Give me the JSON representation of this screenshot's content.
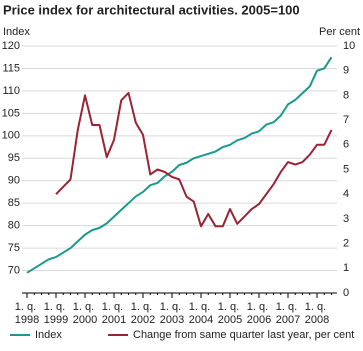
{
  "chart_data": {
    "type": "line",
    "title": "Price index for architectural activities. 2005=100",
    "y_label": "Index",
    "y2_label": "Per cent",
    "categories": [
      "1. q. 1998",
      null,
      null,
      null,
      "1. q. 1999",
      null,
      null,
      null,
      "1. q. 2000",
      null,
      null,
      null,
      "1. q. 2001",
      null,
      null,
      null,
      "1. q. 2002",
      null,
      null,
      null,
      "1. q. 2003",
      null,
      null,
      null,
      "1. q. 2004",
      null,
      null,
      null,
      "1. q. 2005",
      null,
      null,
      null,
      "1. q. 2006",
      null,
      null,
      null,
      "1. q. 2007",
      null,
      null,
      null,
      "1. q. 2008",
      null,
      null
    ],
    "series": [
      {
        "name": "Index",
        "color": "#1a9a8f",
        "values": [
          69.5,
          70.5,
          71.5,
          72.5,
          73,
          74,
          75,
          76.5,
          78,
          79,
          79.5,
          80.5,
          82,
          83.5,
          85,
          86.5,
          87.5,
          89,
          89.5,
          91,
          92,
          93.5,
          94,
          95,
          95.5,
          96,
          96.5,
          97.5,
          98,
          99,
          99.5,
          100.5,
          101,
          102.5,
          103,
          104.5,
          107,
          108,
          109.5,
          111,
          114.5,
          115,
          117.5
        ]
      },
      {
        "name": "Change from same quarter last year, per cent",
        "color": "#9b2335",
        "axis": "y2",
        "values": [
          null,
          null,
          null,
          null,
          4.0,
          4.3,
          4.6,
          6.6,
          8.0,
          6.8,
          6.8,
          5.5,
          6.2,
          7.8,
          8.1,
          6.9,
          6.4,
          4.8,
          5.0,
          4.9,
          4.7,
          4.6,
          3.9,
          3.7,
          2.7,
          3.2,
          2.7,
          2.7,
          3.4,
          2.8,
          3.1,
          3.4,
          3.6,
          4.0,
          4.4,
          4.9,
          5.3,
          5.2,
          5.3,
          5.6,
          6.0,
          6.0,
          6.6
        ]
      }
    ],
    "ylim": [
      65,
      120
    ],
    "yticks": [
      70,
      75,
      80,
      85,
      90,
      95,
      100,
      105,
      110,
      115,
      120
    ],
    "y2lim": [
      0,
      10
    ],
    "y2ticks": [
      0,
      1,
      2,
      3,
      4,
      5,
      6,
      7,
      8,
      9,
      10
    ],
    "grid": true,
    "legend": "bottom"
  }
}
